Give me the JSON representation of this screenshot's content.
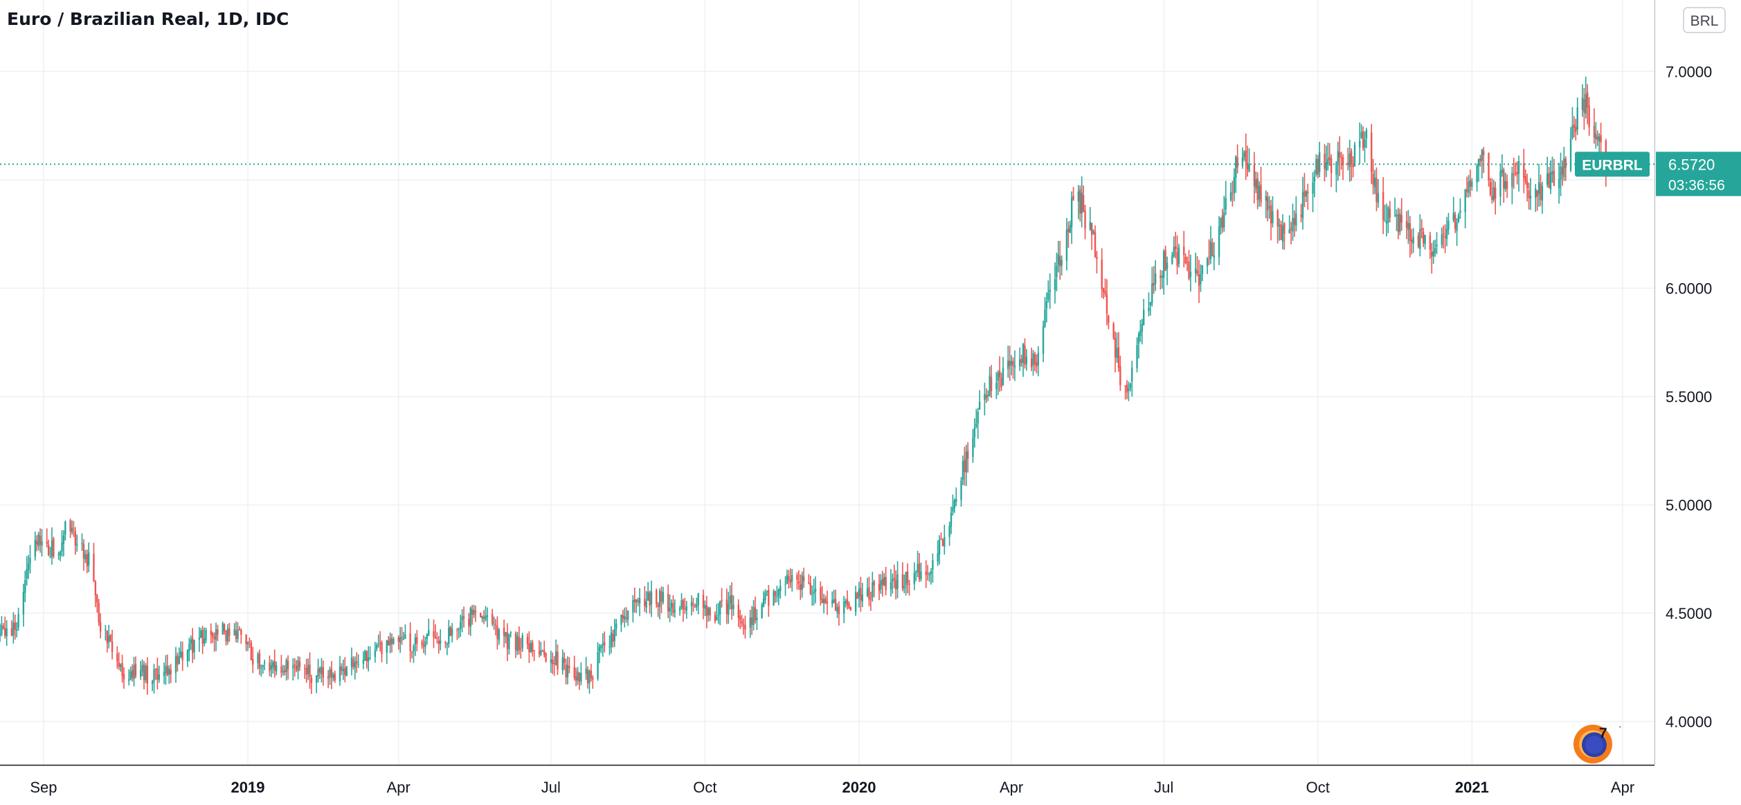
{
  "header": {
    "title": "Euro / Brazilian Real, 1D, IDC",
    "currency_button": "BRL"
  },
  "price_label": {
    "symbol": "EURBRL",
    "last_price": "6.5720",
    "countdown": "03:36:56"
  },
  "badge": {
    "count": "7"
  },
  "colors": {
    "up": "#26a69a",
    "down": "#ef5350",
    "grid": "#eef0f3",
    "axis_text": "#131722",
    "price_line": "#26a69a"
  },
  "chart_data": {
    "type": "candlestick",
    "title": "Euro / Brazilian Real, 1D, IDC",
    "symbol": "EURBRL",
    "interval": "1D",
    "source": "IDC",
    "x_tick_labels": [
      "Sep",
      "2019",
      "Apr",
      "Jul",
      "Oct",
      "2020",
      "Apr",
      "Jul",
      "Oct",
      "2021",
      "Apr"
    ],
    "x_tick_bold": [
      false,
      true,
      false,
      false,
      false,
      true,
      false,
      false,
      false,
      true,
      false
    ],
    "x_tick_dates": [
      "2018-09-01",
      "2019-01-01",
      "2019-04-01",
      "2019-07-01",
      "2019-10-01",
      "2020-01-01",
      "2020-04-01",
      "2020-07-01",
      "2020-10-01",
      "2021-01-01",
      "2021-04-01"
    ],
    "y_tick_labels": [
      "4.0000",
      "4.5000",
      "5.0000",
      "5.5000",
      "6.0000",
      "6.5000",
      "7.0000"
    ],
    "y_ticks": [
      4.0,
      4.5,
      5.0,
      5.5,
      6.0,
      6.5,
      7.0
    ],
    "ylim": [
      3.8,
      7.33
    ],
    "xlim": [
      "2018-08-06",
      "2021-04-20"
    ],
    "last_price": 6.572,
    "grid": true,
    "close_path": [
      [
        "2018-08-06",
        4.4
      ],
      [
        "2018-08-16",
        4.45
      ],
      [
        "2018-08-23",
        4.72
      ],
      [
        "2018-08-28",
        4.85
      ],
      [
        "2018-09-03",
        4.8
      ],
      [
        "2018-09-10",
        4.78
      ],
      [
        "2018-09-14",
        4.88
      ],
      [
        "2018-09-21",
        4.83
      ],
      [
        "2018-09-28",
        4.75
      ],
      [
        "2018-10-05",
        4.45
      ],
      [
        "2018-10-12",
        4.32
      ],
      [
        "2018-10-19",
        4.22
      ],
      [
        "2018-10-26",
        4.25
      ],
      [
        "2018-11-05",
        4.2
      ],
      [
        "2018-11-13",
        4.22
      ],
      [
        "2018-11-21",
        4.3
      ],
      [
        "2018-12-03",
        4.38
      ],
      [
        "2018-12-12",
        4.42
      ],
      [
        "2018-12-19",
        4.41
      ],
      [
        "2018-12-28",
        4.43
      ],
      [
        "2019-01-04",
        4.3
      ],
      [
        "2019-01-15",
        4.26
      ],
      [
        "2019-01-28",
        4.27
      ],
      [
        "2019-02-08",
        4.21
      ],
      [
        "2019-02-22",
        4.22
      ],
      [
        "2019-03-08",
        4.27
      ],
      [
        "2019-03-19",
        4.33
      ],
      [
        "2019-03-29",
        4.38
      ],
      [
        "2019-04-08",
        4.36
      ],
      [
        "2019-04-18",
        4.38
      ],
      [
        "2019-05-01",
        4.4
      ],
      [
        "2019-05-16",
        4.5
      ],
      [
        "2019-05-24",
        4.49
      ],
      [
        "2019-06-03",
        4.38
      ],
      [
        "2019-06-13",
        4.36
      ],
      [
        "2019-06-24",
        4.34
      ],
      [
        "2019-07-03",
        4.29
      ],
      [
        "2019-07-15",
        4.21
      ],
      [
        "2019-07-26",
        4.21
      ],
      [
        "2019-08-01",
        4.35
      ],
      [
        "2019-08-09",
        4.42
      ],
      [
        "2019-08-21",
        4.55
      ],
      [
        "2019-09-02",
        4.57
      ],
      [
        "2019-09-13",
        4.53
      ],
      [
        "2019-09-23",
        4.58
      ],
      [
        "2019-10-07",
        4.5
      ],
      [
        "2019-10-16",
        4.55
      ],
      [
        "2019-10-24",
        4.44
      ],
      [
        "2019-11-05",
        4.55
      ],
      [
        "2019-11-18",
        4.65
      ],
      [
        "2019-11-29",
        4.65
      ],
      [
        "2019-12-09",
        4.55
      ],
      [
        "2019-12-20",
        4.52
      ],
      [
        "2020-01-03",
        4.58
      ],
      [
        "2020-01-13",
        4.62
      ],
      [
        "2020-01-24",
        4.65
      ],
      [
        "2020-02-04",
        4.68
      ],
      [
        "2020-02-14",
        4.73
      ],
      [
        "2020-02-24",
        4.93
      ],
      [
        "2020-03-04",
        5.2
      ],
      [
        "2020-03-11",
        5.42
      ],
      [
        "2020-03-18",
        5.55
      ],
      [
        "2020-03-27",
        5.6
      ],
      [
        "2020-04-06",
        5.7
      ],
      [
        "2020-04-16",
        5.65
      ],
      [
        "2020-04-24",
        6.0
      ],
      [
        "2020-05-01",
        6.15
      ],
      [
        "2020-05-08",
        6.4
      ],
      [
        "2020-05-13",
        6.38
      ],
      [
        "2020-05-21",
        6.2
      ],
      [
        "2020-05-28",
        5.9
      ],
      [
        "2020-06-05",
        5.6
      ],
      [
        "2020-06-09",
        5.52
      ],
      [
        "2020-06-18",
        5.85
      ],
      [
        "2020-06-29",
        6.1
      ],
      [
        "2020-07-06",
        6.15
      ],
      [
        "2020-07-15",
        6.1
      ],
      [
        "2020-07-22",
        6.05
      ],
      [
        "2020-08-03",
        6.25
      ],
      [
        "2020-08-13",
        6.55
      ],
      [
        "2020-08-19",
        6.6
      ],
      [
        "2020-08-27",
        6.45
      ],
      [
        "2020-09-04",
        6.3
      ],
      [
        "2020-09-14",
        6.25
      ],
      [
        "2020-09-21",
        6.38
      ],
      [
        "2020-10-01",
        6.57
      ],
      [
        "2020-10-12",
        6.58
      ],
      [
        "2020-10-21",
        6.6
      ],
      [
        "2020-10-30",
        6.7
      ],
      [
        "2020-11-05",
        6.4
      ],
      [
        "2020-11-12",
        6.35
      ],
      [
        "2020-11-20",
        6.3
      ],
      [
        "2020-12-01",
        6.22
      ],
      [
        "2020-12-08",
        6.15
      ],
      [
        "2020-12-16",
        6.25
      ],
      [
        "2020-12-28",
        6.4
      ],
      [
        "2021-01-06",
        6.62
      ],
      [
        "2021-01-13",
        6.45
      ],
      [
        "2021-01-21",
        6.5
      ],
      [
        "2021-01-29",
        6.55
      ],
      [
        "2021-02-05",
        6.42
      ],
      [
        "2021-02-18",
        6.48
      ],
      [
        "2021-02-26",
        6.6
      ],
      [
        "2021-03-05",
        6.8
      ],
      [
        "2021-03-10",
        6.85
      ],
      [
        "2021-03-15",
        6.72
      ],
      [
        "2021-03-22",
        6.57
      ]
    ]
  }
}
